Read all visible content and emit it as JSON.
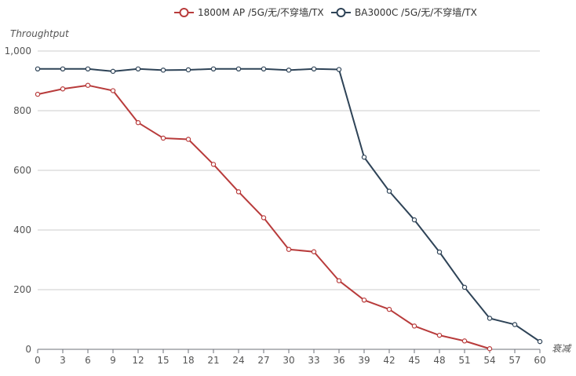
{
  "chart_data": {
    "type": "line",
    "xlabel": "衰减",
    "ylabel": "Throughtput",
    "categories": [
      "0",
      "3",
      "6",
      "9",
      "12",
      "15",
      "18",
      "21",
      "24",
      "27",
      "30",
      "33",
      "36",
      "39",
      "42",
      "45",
      "48",
      "51",
      "54",
      "57",
      "60"
    ],
    "ylim": [
      0,
      1000
    ],
    "yticks": [
      "0",
      "200",
      "400",
      "600",
      "800",
      "1,000"
    ],
    "grid": true,
    "legend_position": "top",
    "series": [
      {
        "name": "1800M AP /5G/无/不穿墙/TX",
        "color": "#b83b3b",
        "values": [
          855,
          873,
          885,
          867,
          760,
          708,
          704,
          620,
          528,
          441,
          335,
          327,
          230,
          165,
          134,
          78,
          47,
          28,
          2,
          null,
          null
        ]
      },
      {
        "name": "BA3000C /5G/无/不穿墙/TX",
        "color": "#2e4357",
        "values": [
          940,
          940,
          940,
          932,
          940,
          936,
          937,
          940,
          940,
          940,
          936,
          940,
          938,
          644,
          530,
          434,
          326,
          208,
          104,
          83,
          26
        ]
      }
    ]
  }
}
